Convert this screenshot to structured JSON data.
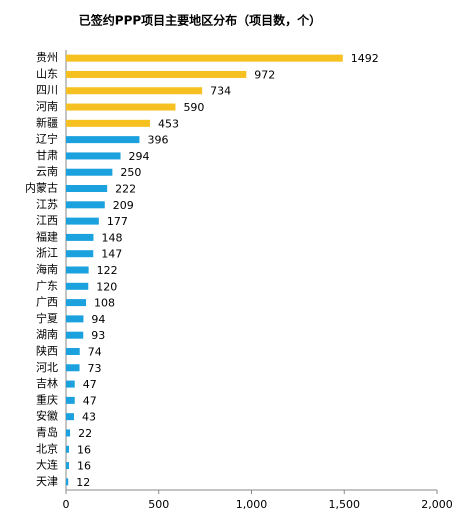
{
  "chart_data": {
    "type": "hbar",
    "title": "已签约PPP项目主要地区分布（项目数，个）",
    "categories": [
      "贵州",
      "山东",
      "四川",
      "河南",
      "新疆",
      "辽宁",
      "甘肃",
      "云南",
      "内蒙古",
      "江苏",
      "江西",
      "福建",
      "浙江",
      "海南",
      "广东",
      "广西",
      "宁夏",
      "湖南",
      "陕西",
      "河北",
      "吉林",
      "重庆",
      "安徽",
      "青岛",
      "北京",
      "大连",
      "天津"
    ],
    "values": [
      1492,
      972,
      734,
      590,
      453,
      396,
      294,
      250,
      222,
      209,
      177,
      148,
      147,
      122,
      120,
      108,
      94,
      93,
      74,
      73,
      47,
      47,
      43,
      22,
      16,
      16,
      12
    ],
    "colors": [
      "#f5c020",
      "#f5c020",
      "#f5c020",
      "#f5c020",
      "#f5c020",
      "#1ba1dd",
      "#1ba1dd",
      "#1ba1dd",
      "#1ba1dd",
      "#1ba1dd",
      "#1ba1dd",
      "#1ba1dd",
      "#1ba1dd",
      "#1ba1dd",
      "#1ba1dd",
      "#1ba1dd",
      "#1ba1dd",
      "#1ba1dd",
      "#1ba1dd",
      "#1ba1dd",
      "#1ba1dd",
      "#1ba1dd",
      "#1ba1dd",
      "#1ba1dd",
      "#1ba1dd",
      "#1ba1dd",
      "#1ba1dd"
    ],
    "xlim": [
      0,
      2000
    ],
    "xticks": [
      0,
      500,
      {
        "value": 1000,
        "label": "1,000"
      },
      {
        "value": 1500,
        "label": "1,500"
      },
      {
        "value": 2000,
        "label": "2,000"
      }
    ],
    "grid": false
  }
}
